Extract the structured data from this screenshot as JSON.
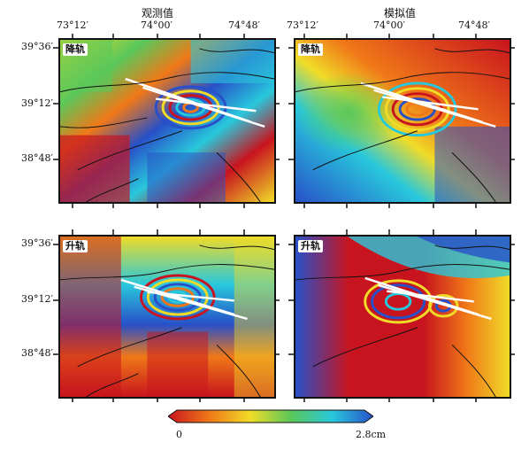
{
  "columns": [
    {
      "title": "观测值"
    },
    {
      "title": "模拟值"
    }
  ],
  "top_ticks": [
    "73°12′",
    "74°00′",
    "74°48′"
  ],
  "left_ticks": [
    "39°36′",
    "39°12′",
    "38°48′"
  ],
  "panels": [
    {
      "label": "降轨"
    },
    {
      "label": "降轨"
    },
    {
      "label": "升轨"
    },
    {
      "label": "升轨"
    }
  ],
  "colorbar": {
    "min_label": "0",
    "max_label": "2.8cm",
    "colors": [
      "#c8141e",
      "#f07818",
      "#f0dc28",
      "#5ac85a",
      "#28c8dc",
      "#2850c8"
    ]
  }
}
